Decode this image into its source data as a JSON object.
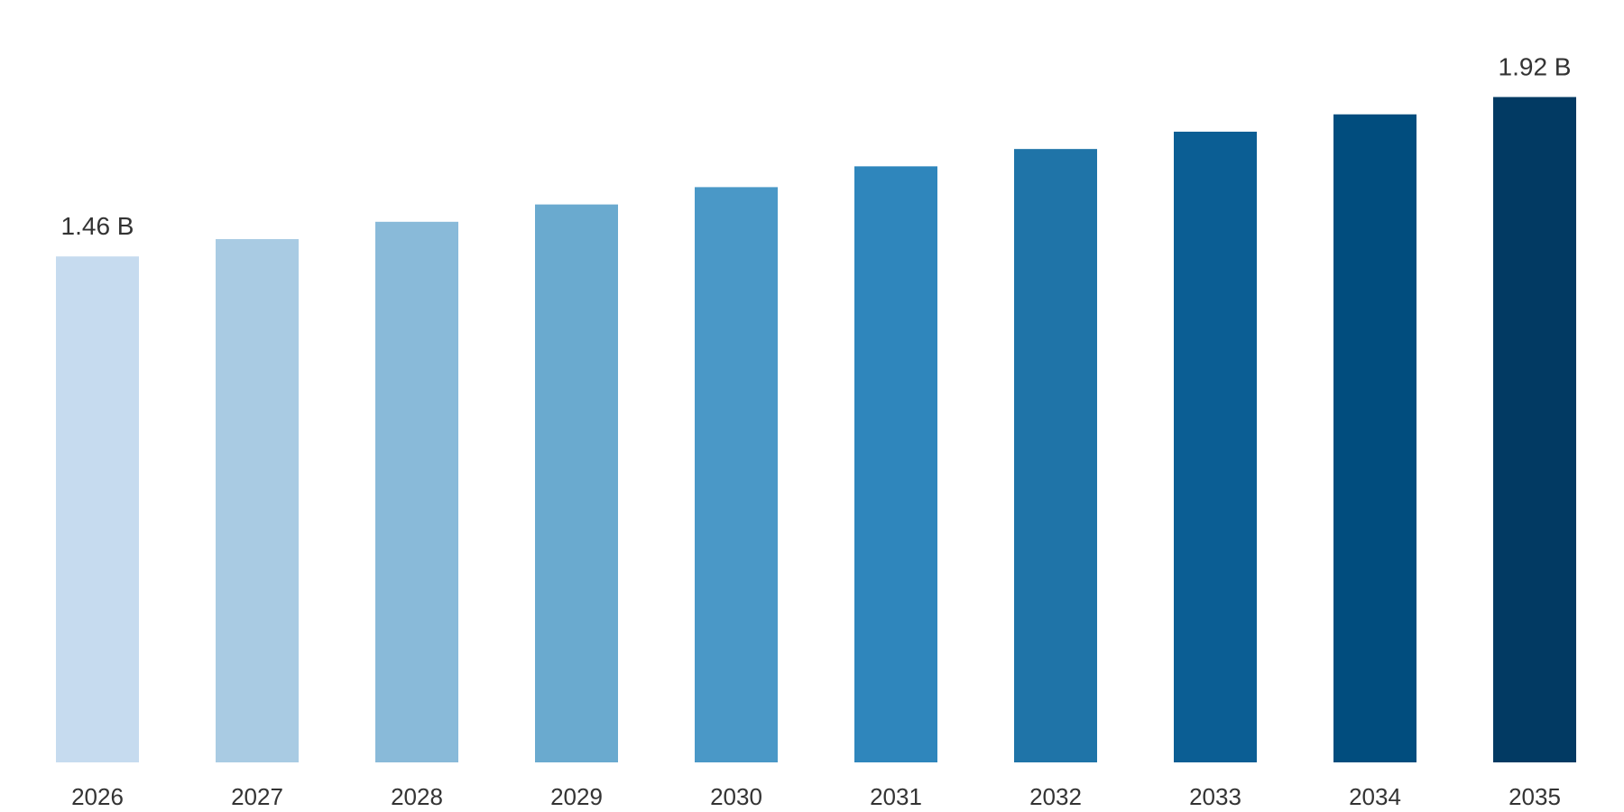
{
  "chart_data": {
    "type": "bar",
    "title": "",
    "xlabel": "",
    "ylabel": "",
    "categories": [
      "2026",
      "2027",
      "2028",
      "2029",
      "2030",
      "2031",
      "2032",
      "2033",
      "2034",
      "2035"
    ],
    "values": [
      1.46,
      1.51,
      1.56,
      1.61,
      1.66,
      1.72,
      1.77,
      1.82,
      1.87,
      1.92
    ],
    "unit": "B",
    "ylim": [
      0,
      2.2
    ],
    "grid": false,
    "legend": "none",
    "data_labels": [
      {
        "category": "2026",
        "text": "1.46 B"
      },
      {
        "category": "2035",
        "text": "1.92 B"
      }
    ],
    "colors": [
      "#c6dbef",
      "#a9cbe3",
      "#89bad9",
      "#6aaacf",
      "#4a98c7",
      "#2f86bc",
      "#1f74a8",
      "#0b5e94",
      "#014d7e",
      "#023a63"
    ]
  }
}
